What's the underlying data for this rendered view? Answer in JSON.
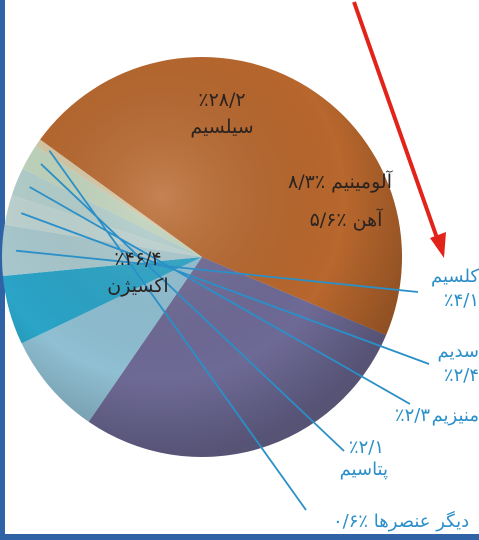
{
  "chart_data": {
    "type": "pie",
    "unit": "%",
    "slices": [
      {
        "id": "silicon",
        "name": "سیلسیم",
        "value": 28.2,
        "value_text": "٪۲۸/۲",
        "color": "#6e6a96"
      },
      {
        "id": "aluminum",
        "name": "آلومینیم",
        "value": 8.3,
        "value_text": "٪۸/۳",
        "color": "#8fbfd2"
      },
      {
        "id": "iron",
        "name": "آهن",
        "value": 5.6,
        "value_text": "٪۵/۶",
        "color": "#2aa4c7"
      },
      {
        "id": "calcium",
        "name": "کلسیم",
        "value": 4.1,
        "value_text": "٪۴/۱",
        "color": "#a9c9ce"
      },
      {
        "id": "sodium",
        "name": "سدیم",
        "value": 2.4,
        "value_text": "٪۲/۴",
        "color": "#bed4d1"
      },
      {
        "id": "magnesium",
        "name": "منیزیم",
        "value": 2.3,
        "value_text": "٪۲/۳",
        "color": "#b3cfcc"
      },
      {
        "id": "potassium",
        "name": "پتاسیم",
        "value": 2.1,
        "value_text": "٪۲/۱",
        "color": "#c1d5bd"
      },
      {
        "id": "others",
        "name": "دیگر عنصرها",
        "value": 0.6,
        "value_text": "٪۰/۶",
        "color": "#d7c9a6"
      },
      {
        "id": "oxygen",
        "name": "اکسیژن",
        "value": 46.4,
        "value_text": "٪۴۶/۴",
        "color": "#b8672d"
      }
    ]
  },
  "colors": {
    "callout_text": "#2b8fc8",
    "callout_line": "#2b8fc8",
    "arrow": "#e2231a",
    "frame": "#2f63a6",
    "internal_text": "#2a2320"
  },
  "icons": {
    "arrow": "red-arrow-icon"
  }
}
